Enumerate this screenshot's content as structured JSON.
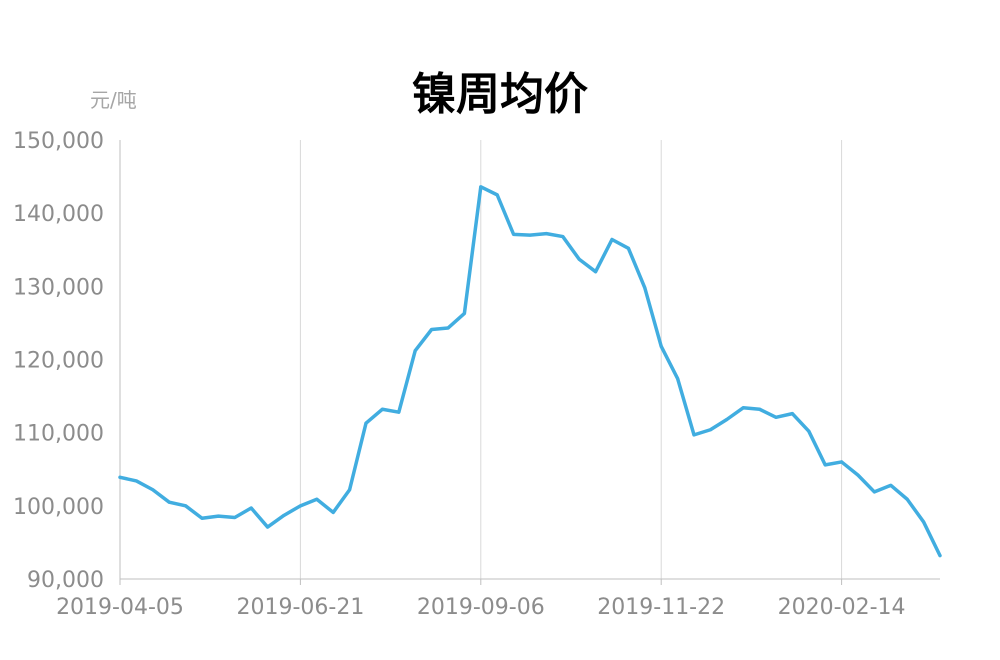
{
  "chart_data": {
    "type": "line",
    "title": "镍周均价",
    "unit": "元/吨",
    "xlabel": "",
    "ylabel": "",
    "ylim": [
      90000,
      150000
    ],
    "yticks": [
      90000,
      100000,
      110000,
      120000,
      130000,
      140000,
      150000
    ],
    "ytick_labels": [
      "90,000",
      "100,000",
      "110,000",
      "120,000",
      "130,000",
      "140,000",
      "150,000"
    ],
    "xtick_labels": [
      "2019-04-05",
      "2019-06-21",
      "2019-09-06",
      "2019-11-22",
      "2020-02-14"
    ],
    "xtick_indices": [
      0,
      11,
      22,
      33,
      44
    ],
    "grid": "vertical",
    "color": "#41ade0",
    "series": [
      {
        "x": [
          "2019-04-05",
          "2019-04-12",
          "2019-04-19",
          "2019-04-26",
          "2019-05-03",
          "2019-05-10",
          "2019-05-17",
          "2019-05-24",
          "2019-05-31",
          "2019-06-07",
          "2019-06-14",
          "2019-06-21",
          "2019-06-28",
          "2019-07-05",
          "2019-07-12",
          "2019-07-19",
          "2019-07-26",
          "2019-08-02",
          "2019-08-09",
          "2019-08-16",
          "2019-08-23",
          "2019-08-30",
          "2019-09-06",
          "2019-09-13",
          "2019-09-20",
          "2019-09-27",
          "2019-10-04",
          "2019-10-11",
          "2019-10-18",
          "2019-10-25",
          "2019-11-01",
          "2019-11-08",
          "2019-11-15",
          "2019-11-22",
          "2019-11-29",
          "2019-12-06",
          "2019-12-13",
          "2019-12-20",
          "2019-12-27",
          "2020-01-03",
          "2020-01-10",
          "2020-01-17",
          "2020-01-24",
          "2020-01-31",
          "2020-02-07",
          "2020-02-14",
          "2020-02-21",
          "2020-02-28",
          "2020-03-06",
          "2020-03-13",
          "2020-03-20"
        ],
        "values": [
          103900,
          103400,
          102200,
          100500,
          100000,
          98300,
          98600,
          98400,
          99700,
          97100,
          98700,
          100000,
          100900,
          99100,
          102200,
          111300,
          113200,
          112800,
          121200,
          124100,
          124300,
          126300,
          143600,
          142500,
          137100,
          137000,
          137200,
          136800,
          133700,
          132000,
          136400,
          135200,
          129800,
          121800,
          117400,
          109700,
          110400,
          111800,
          113400,
          113200,
          112100,
          112600,
          110200,
          105600,
          106000,
          104200,
          101900,
          102800,
          100900,
          97800,
          93200
        ]
      }
    ]
  }
}
